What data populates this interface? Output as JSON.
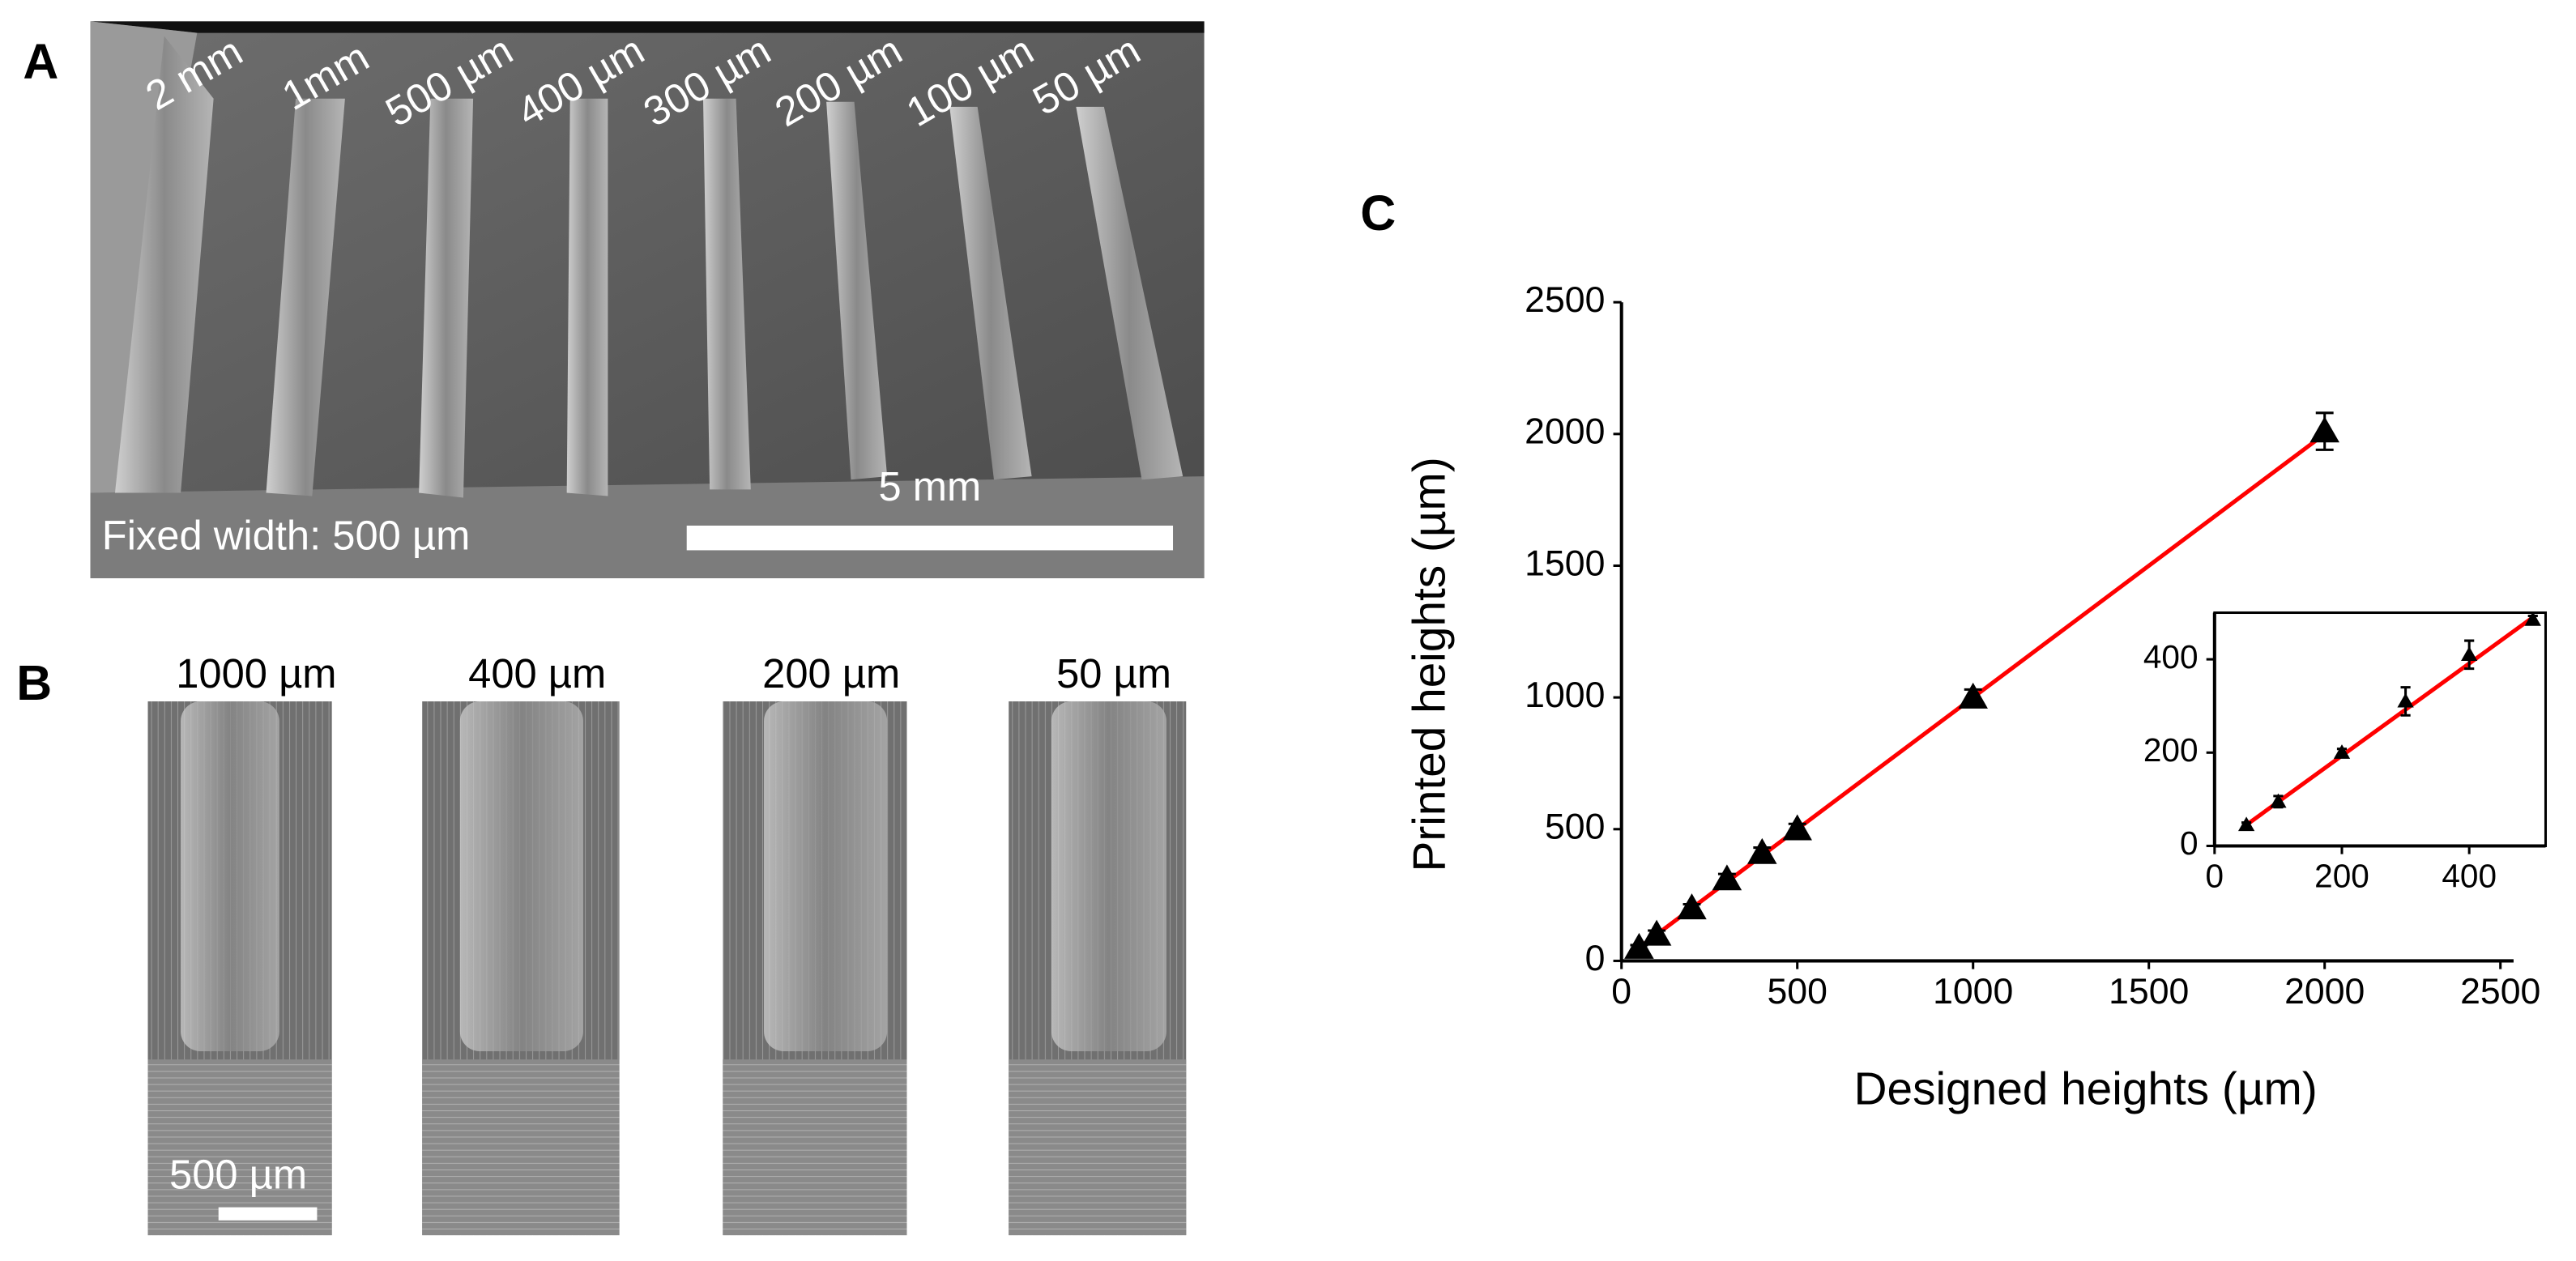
{
  "panel_a": {
    "label": "A",
    "line_labels": [
      "2 mm",
      "1mm",
      "500 µm",
      "400 µm",
      "300 µm",
      "200 µm",
      "100 µm",
      "50 µm"
    ],
    "scale_bar": "5 mm",
    "caption": "Fixed width: 500 µm"
  },
  "panel_b": {
    "label": "B",
    "image_labels": [
      "1000 µm",
      "400 µm",
      "200 µm",
      "50 µm"
    ],
    "scale_bar": "500 µm"
  },
  "panel_c": {
    "label": "C"
  },
  "chart_data": [
    {
      "type": "scatter",
      "x_label": "Designed heights (µm)",
      "y_label": "Printed heights (µm)",
      "xlim": [
        0,
        2500
      ],
      "ylim": [
        0,
        2500
      ],
      "xticks": [
        0,
        500,
        1000,
        1500,
        2000,
        2500
      ],
      "yticks": [
        0,
        500,
        1000,
        1500,
        2000,
        2500
      ],
      "series": [
        {
          "x": [
            50,
            100,
            200,
            300,
            400,
            500,
            1000,
            2000
          ],
          "values": [
            50,
            100,
            200,
            310,
            410,
            500,
            1000,
            2010
          ],
          "errors": [
            10,
            15,
            15,
            20,
            20,
            20,
            30,
            70
          ],
          "color": "#000000"
        }
      ],
      "fit": {
        "x": [
          30,
          2000
        ],
        "y": [
          30,
          2000
        ],
        "color": "#ff0000"
      }
    },
    {
      "type": "scatter",
      "xlim": [
        0,
        520
      ],
      "ylim": [
        0,
        500
      ],
      "xticks": [
        0,
        200,
        400
      ],
      "yticks": [
        0,
        200,
        400
      ],
      "frame": true,
      "series": [
        {
          "x": [
            50,
            100,
            200,
            300,
            400,
            500
          ],
          "values": [
            45,
            95,
            200,
            310,
            410,
            485
          ],
          "errors": [
            5,
            12,
            8,
            30,
            30,
            8
          ],
          "color": "#000000"
        }
      ],
      "fit": {
        "x": [
          50,
          500
        ],
        "y": [
          45,
          490
        ],
        "color": "#ff0000"
      }
    }
  ]
}
